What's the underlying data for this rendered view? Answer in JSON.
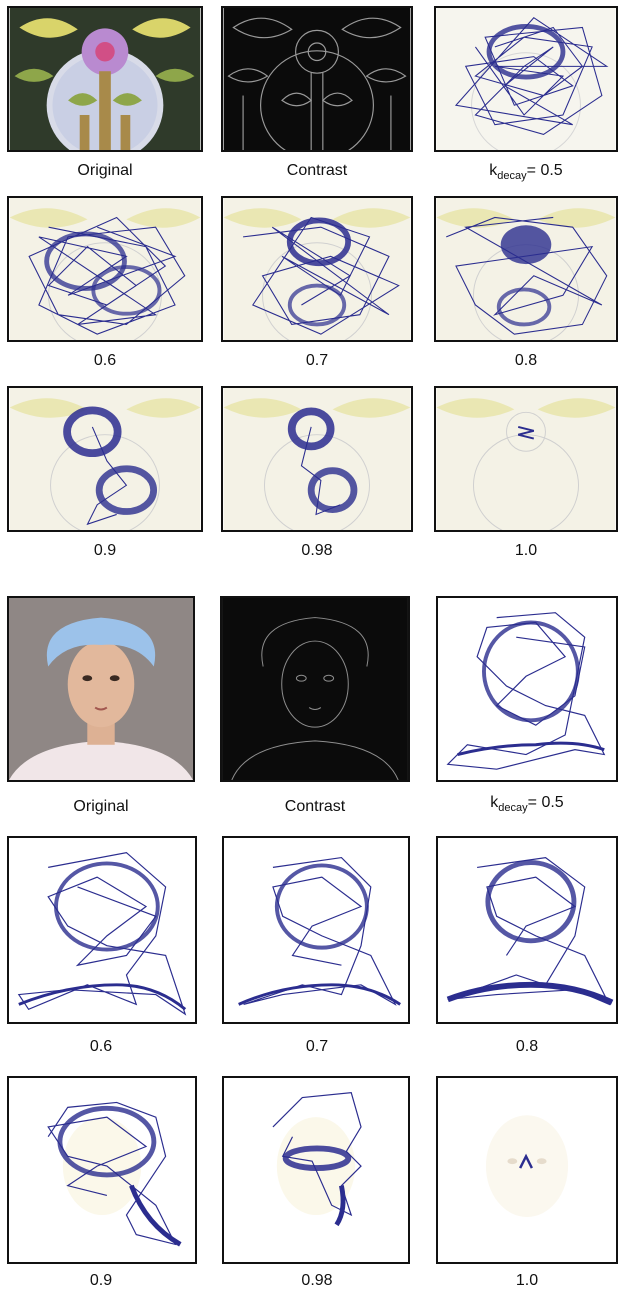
{
  "figure_a": {
    "panels": [
      {
        "id": "a-original",
        "label": "Original"
      },
      {
        "id": "a-contrast",
        "label": "Contrast"
      },
      {
        "id": "a-05",
        "label_prefix": "k",
        "label_sub": "decay",
        "label_value": "= 0.5"
      },
      {
        "id": "a-06",
        "label": "0.6"
      },
      {
        "id": "a-07",
        "label": "0.7"
      },
      {
        "id": "a-08",
        "label": "0.8"
      },
      {
        "id": "a-09",
        "label": "0.9"
      },
      {
        "id": "a-098",
        "label": "0.98"
      },
      {
        "id": "a-10",
        "label": "1.0"
      }
    ]
  },
  "figure_b": {
    "panels": [
      {
        "id": "b-original",
        "label": "Original"
      },
      {
        "id": "b-contrast",
        "label": "Contrast"
      },
      {
        "id": "b-05",
        "label_prefix": "k",
        "label_sub": "decay",
        "label_value": "= 0.5"
      },
      {
        "id": "b-06",
        "label": "0.6"
      },
      {
        "id": "b-07",
        "label": "0.7"
      },
      {
        "id": "b-08",
        "label": "0.8"
      },
      {
        "id": "b-09",
        "label": "0.9"
      },
      {
        "id": "b-098",
        "label": "0.98"
      },
      {
        "id": "b-10",
        "label": "1.0"
      }
    ]
  },
  "colors": {
    "path": "#2b2d8f",
    "frame": "#111111",
    "glass_dark": "#2f3a2a",
    "glass_purple": "#b98ad0",
    "glass_yellow": "#d9d46a",
    "glass_green": "#8ea64a",
    "contrast_bg": "#0b0b0b",
    "photo_bg": "#8f8785",
    "cap": "#9cc2ea",
    "skin": "#e2b89c"
  }
}
